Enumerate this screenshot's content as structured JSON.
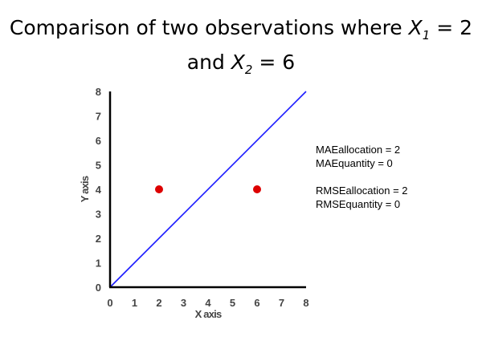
{
  "title": {
    "prefix": "Comparison of two observations where ",
    "var1": "X",
    "sub1": "1",
    "eq1": " = 2",
    "mid": "and ",
    "var2": "X",
    "sub2": "2",
    "eq2": " = 6"
  },
  "stats": {
    "mae_allocation": "MAEallocation = 2",
    "mae_quantity": "MAEquantity = 0",
    "rmse_allocation": "RMSEallocation = 2",
    "rmse_quantity": "RMSEquantity = 0"
  },
  "colors": {
    "line": "#1a1aff",
    "points": "#dd0000",
    "axis": "#000000",
    "tick_text": "#444444"
  },
  "chart_data": {
    "type": "scatter",
    "xlabel": "X axis",
    "ylabel": "Y axis",
    "xlim": [
      0,
      8
    ],
    "ylim": [
      0,
      8
    ],
    "xticks": [
      "0",
      "1",
      "2",
      "3",
      "4",
      "5",
      "6",
      "7",
      "8"
    ],
    "yticks": [
      "0",
      "1",
      "2",
      "3",
      "4",
      "5",
      "6",
      "7",
      "8"
    ],
    "grid": false,
    "points": [
      {
        "x": 2,
        "y": 4
      },
      {
        "x": 6,
        "y": 4
      }
    ],
    "line": [
      {
        "x": 0,
        "y": 0
      },
      {
        "x": 8,
        "y": 8
      }
    ]
  }
}
